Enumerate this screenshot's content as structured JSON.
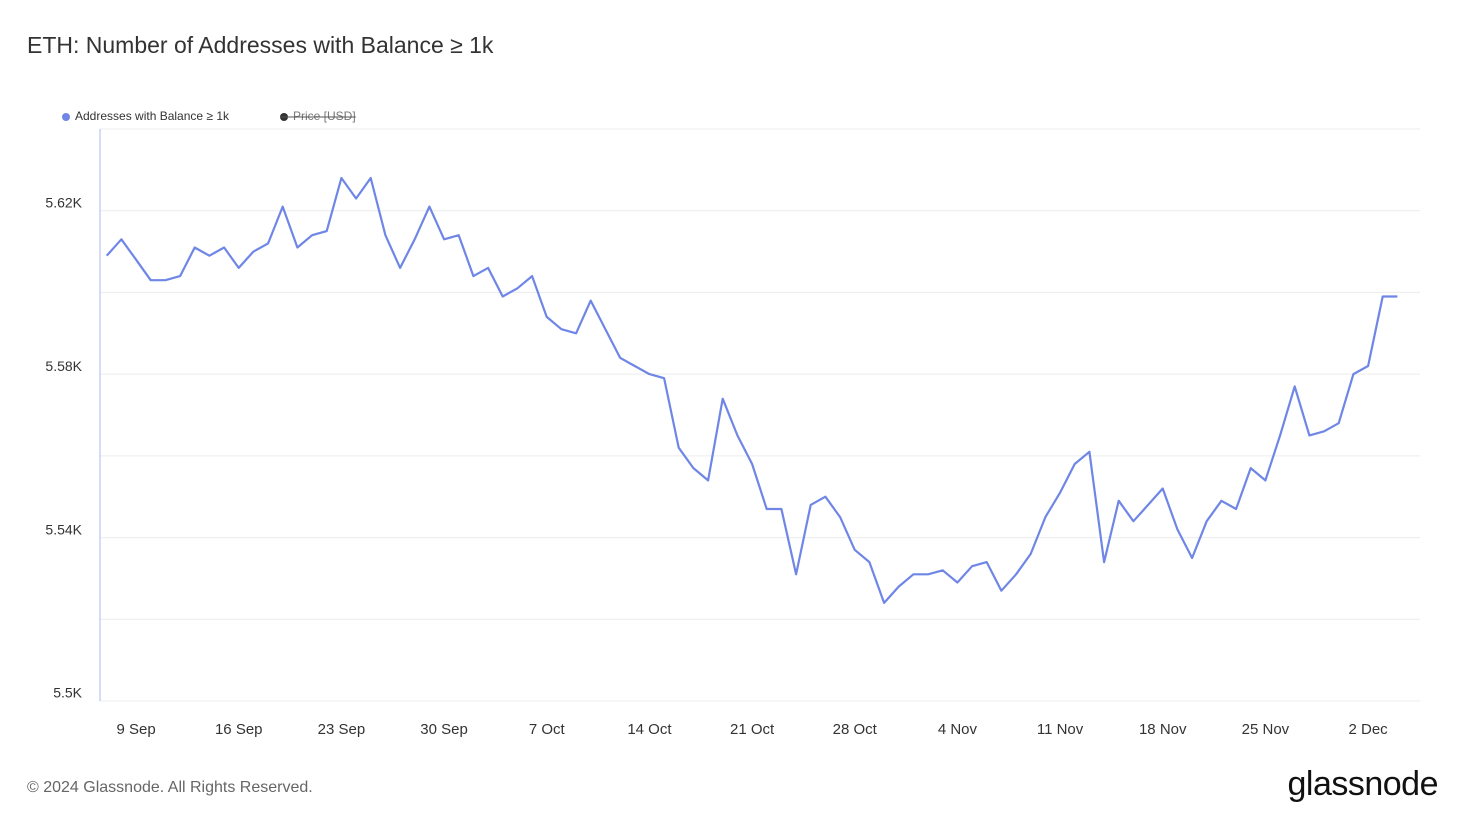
{
  "chart_data": {
    "type": "line",
    "title": "ETH: Number of Addresses with Balance ≥ 1k",
    "categories": [
      null,
      null,
      "9 Sep",
      null,
      null,
      null,
      null,
      null,
      null,
      "16 Sep",
      null,
      null,
      null,
      null,
      null,
      null,
      "23 Sep",
      null,
      null,
      null,
      null,
      null,
      null,
      "30 Sep",
      null,
      null,
      null,
      null,
      null,
      null,
      "7 Oct",
      null,
      null,
      null,
      null,
      null,
      null,
      "14 Oct",
      null,
      null,
      null,
      null,
      null,
      null,
      "21 Oct",
      null,
      null,
      null,
      null,
      null,
      null,
      "28 Oct",
      null,
      null,
      null,
      null,
      null,
      null,
      "4 Nov",
      null,
      null,
      null,
      null,
      null,
      null,
      "11 Nov",
      null,
      null,
      null,
      null,
      null,
      null,
      "18 Nov",
      null,
      null,
      null,
      null,
      null,
      null,
      "25 Nov",
      null,
      null,
      null,
      null,
      null,
      null,
      "2 Dec",
      null,
      null
    ],
    "series": [
      {
        "name": "Addresses with Balance ≥ 1k",
        "color": "#6f86e6",
        "values": [
          5609,
          5613,
          5608,
          5603,
          5603,
          5604,
          5611,
          5609,
          5611,
          5606,
          5610,
          5612,
          5621,
          5611,
          5614,
          5615,
          5628,
          5623,
          5628,
          5614,
          5606,
          5613,
          5621,
          5613,
          5614,
          5604,
          5606,
          5599,
          5601,
          5604,
          5594,
          5591,
          5590,
          5598,
          5591,
          5584,
          5582,
          5580,
          5579,
          5562,
          5557,
          5554,
          5574,
          5565,
          5558,
          5547,
          5547,
          5531,
          5548,
          5550,
          5545,
          5537,
          5534,
          5524,
          5528,
          5531,
          5531,
          5532,
          5529,
          5533,
          5534,
          5527,
          5531,
          5536,
          5545,
          5551,
          5558,
          5561,
          5534,
          5549,
          5544,
          5548,
          5552,
          5542,
          5535,
          5544,
          5549,
          5547,
          5557,
          5554,
          5565,
          5577,
          5565,
          5566,
          5568,
          5580,
          5582,
          5599,
          5599
        ]
      }
    ],
    "hidden_series": [
      {
        "name": "Price [USD]",
        "color": "#333333"
      }
    ],
    "ylim": [
      5500,
      5640
    ],
    "yticks": [
      {
        "value": 5500,
        "label": "5.5K"
      },
      {
        "value": 5520,
        "label": null
      },
      {
        "value": 5540,
        "label": "5.54K"
      },
      {
        "value": 5560,
        "label": null
      },
      {
        "value": 5580,
        "label": "5.58K"
      },
      {
        "value": 5600,
        "label": null
      },
      {
        "value": 5620,
        "label": "5.62K"
      },
      {
        "value": 5640,
        "label": null
      }
    ],
    "grid": true
  },
  "footer": {
    "copyright": "© 2024 Glassnode. All Rights Reserved.",
    "brand": "glassnode"
  }
}
